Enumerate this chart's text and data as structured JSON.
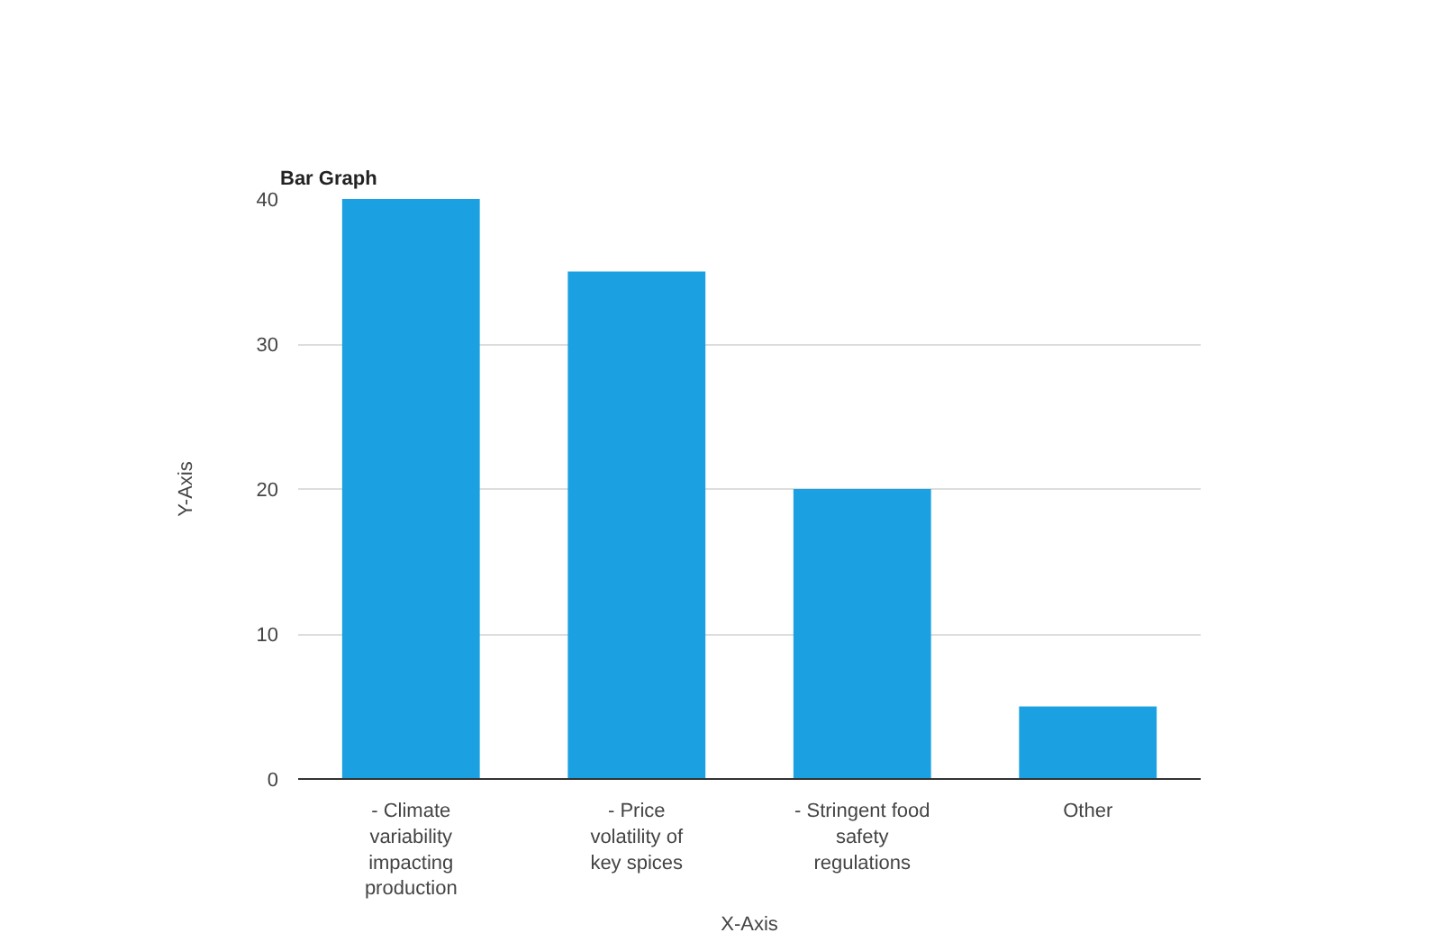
{
  "chart_data": {
    "type": "bar",
    "title": "Bar Graph",
    "xlabel": "X-Axis",
    "ylabel": "Y-Axis",
    "categories": [
      "- Climate variability impacting production",
      "- Price volatility of key spices",
      "- Stringent food safety regulations",
      "Other"
    ],
    "values": [
      40,
      35,
      20,
      5
    ],
    "color": "#1ba1e2",
    "ylim": [
      0,
      40
    ],
    "yticks": [
      0,
      10,
      20,
      30,
      40
    ],
    "grid": "y"
  }
}
